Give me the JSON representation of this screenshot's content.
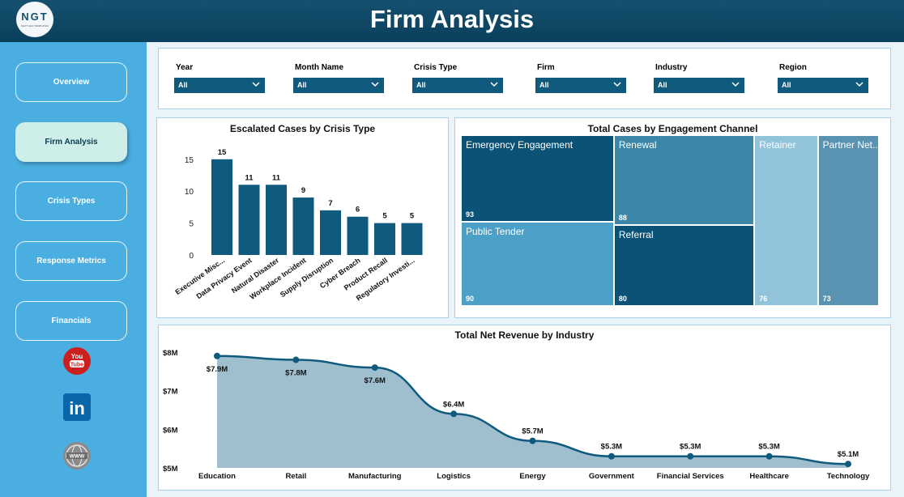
{
  "header": {
    "title": "Firm Analysis",
    "logo_text": "NGT",
    "logo_subtext": "NEXT GEN TEMPLATES"
  },
  "nav": [
    {
      "label": "Overview",
      "active": false
    },
    {
      "label": "Firm Analysis",
      "active": true
    },
    {
      "label": "Crisis Types",
      "active": false
    },
    {
      "label": "Response Metrics",
      "active": false
    },
    {
      "label": "Financials",
      "active": false
    }
  ],
  "social": {
    "youtube_icon": "youtube-icon",
    "linkedin_icon": "linkedin-icon",
    "web_icon": "globe-www-icon"
  },
  "filters": [
    {
      "label": "Year",
      "value": "All"
    },
    {
      "label": "Month Name",
      "value": "All"
    },
    {
      "label": "Crisis Type",
      "value": "All"
    },
    {
      "label": "Firm",
      "value": "All"
    },
    {
      "label": "Industry",
      "value": "All"
    },
    {
      "label": "Region",
      "value": "All"
    }
  ],
  "colors": {
    "header": "#0a3f5c",
    "sidebar": "#4aaee0",
    "bar": "#0f5a7d",
    "area": "#9fbfcf",
    "line": "#0f5a7d"
  },
  "chart_data": [
    {
      "type": "bar",
      "title": "Escalated Cases by Crisis Type",
      "categories": [
        "Executive Misc...",
        "Data Privacy Event",
        "Natural Disaster",
        "Workplace Incident",
        "Supply Disruption",
        "Cyber Breach",
        "Product Recall",
        "Regulatory Investi..."
      ],
      "values": [
        15,
        11,
        11,
        9,
        7,
        6,
        5,
        5
      ],
      "yticks": [
        0,
        5,
        10,
        15
      ],
      "ylim": [
        0,
        17
      ]
    },
    {
      "type": "treemap",
      "title": "Total Cases by Engagement Channel",
      "tiles": [
        {
          "name": "Emergency Engagement",
          "value": 93,
          "color": "#0b5277"
        },
        {
          "name": "Public Tender",
          "value": 90,
          "color": "#4c9fc6"
        },
        {
          "name": "Renewal",
          "value": 88,
          "color": "#3c87a8"
        },
        {
          "name": "Referral",
          "value": 80,
          "color": "#0b5277"
        },
        {
          "name": "Retainer",
          "value": 76,
          "color": "#91c3db"
        },
        {
          "name": "Partner Net...",
          "value": 73,
          "color": "#5a93b2"
        }
      ]
    },
    {
      "type": "area",
      "title": "Total Net Revenue by Industry",
      "categories": [
        "Education",
        "Retail",
        "Manufacturing",
        "Logistics",
        "Energy",
        "Government",
        "Financial Services",
        "Healthcare",
        "Technology"
      ],
      "values": [
        7.9,
        7.8,
        7.6,
        6.4,
        5.7,
        5.3,
        5.3,
        5.3,
        5.1
      ],
      "labels": [
        "$7.9M",
        "$7.8M",
        "$7.6M",
        "$6.4M",
        "$5.7M",
        "$5.3M",
        "$5.3M",
        "$5.3M",
        "$5.1M"
      ],
      "yticks": [
        "$5M",
        "$6M",
        "$7M",
        "$8M"
      ],
      "ylim": [
        5,
        8
      ]
    }
  ]
}
